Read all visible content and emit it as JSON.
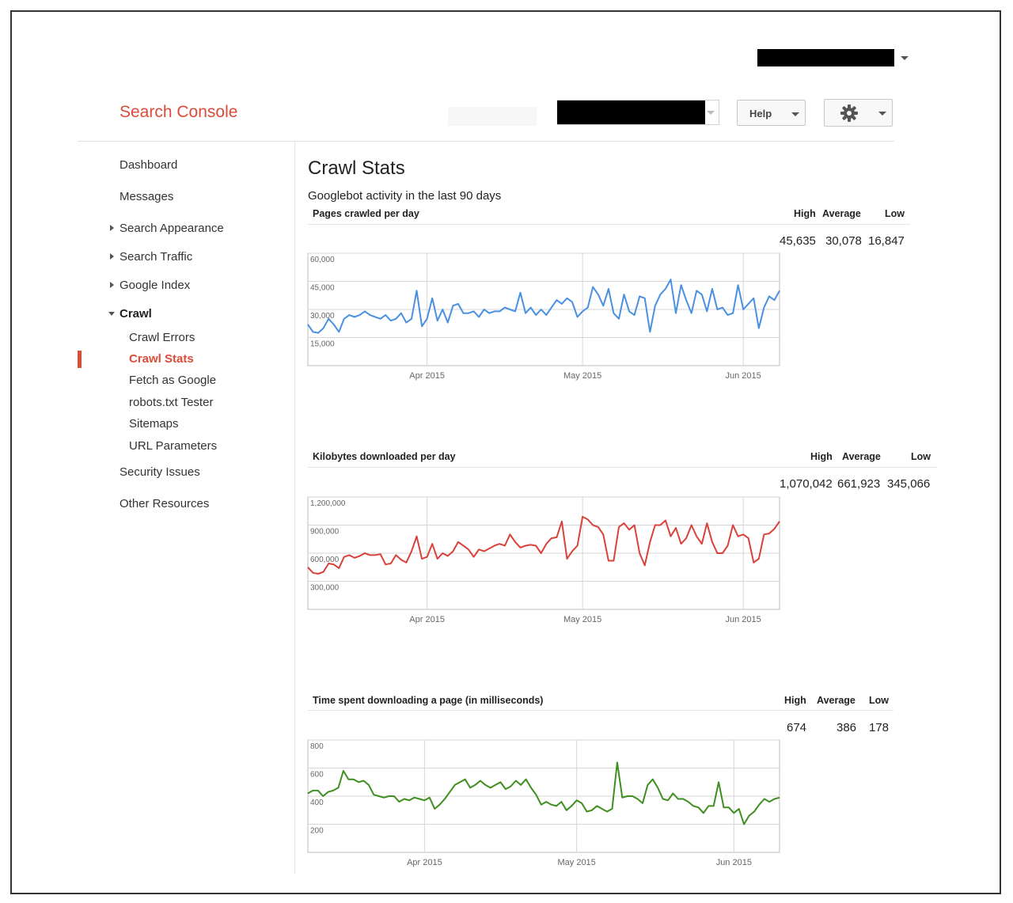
{
  "header": {
    "brand": "Search Console",
    "help_label": "Help",
    "settings_icon": "gear-icon"
  },
  "sidebar": {
    "items": [
      {
        "label": "Dashboard"
      },
      {
        "label": "Messages"
      },
      {
        "label": "Search Appearance"
      },
      {
        "label": "Search Traffic"
      },
      {
        "label": "Google Index"
      },
      {
        "label": "Crawl"
      }
    ],
    "crawl_children": [
      {
        "label": "Crawl Errors"
      },
      {
        "label": "Crawl Stats"
      },
      {
        "label": "Fetch as Google"
      },
      {
        "label": "robots.txt Tester"
      },
      {
        "label": "Sitemaps"
      },
      {
        "label": "URL Parameters"
      }
    ],
    "bottom_items": [
      {
        "label": "Security Issues"
      },
      {
        "label": "Other Resources"
      }
    ]
  },
  "main": {
    "title": "Crawl Stats",
    "subtitle": "Googlebot activity in the last 90 days"
  },
  "colors": {
    "accent": "#dd4b39",
    "pages_line": "#4a90e2",
    "kb_line": "#d9413a",
    "time_line": "#3e8e20"
  },
  "chart_data": [
    {
      "type": "line",
      "title": "Pages crawled per day",
      "stats": {
        "high_label": "High",
        "average_label": "Average",
        "low_label": "Low",
        "high": "45,635",
        "average": "30,078",
        "low": "16,847"
      },
      "ylim": [
        0,
        60000
      ],
      "yticks": [
        60000,
        45000,
        30000,
        15000
      ],
      "ytick_labels": [
        "60,000",
        "45,000",
        "30,000",
        "15,000"
      ],
      "xtick_labels": [
        "Apr 2015",
        "May 2015",
        "Jun 2015"
      ],
      "xtick_index": [
        23,
        53,
        84
      ],
      "grid": true,
      "series": [
        {
          "color": "#4a90e2",
          "values": [
            22000,
            18000,
            17500,
            20000,
            25000,
            22000,
            18000,
            25000,
            27000,
            26000,
            27000,
            29000,
            27000,
            26000,
            25000,
            27000,
            24000,
            25000,
            28000,
            23000,
            25000,
            40000,
            21000,
            25000,
            36000,
            24000,
            30000,
            23000,
            32000,
            33000,
            28000,
            28000,
            29000,
            26000,
            30000,
            28000,
            29000,
            29000,
            31000,
            30000,
            29000,
            39000,
            28000,
            31000,
            27000,
            30000,
            27000,
            31000,
            35000,
            33000,
            36000,
            34000,
            26000,
            29000,
            31000,
            42000,
            38000,
            32000,
            41000,
            28000,
            25000,
            38000,
            29000,
            27000,
            37000,
            36000,
            18000,
            32000,
            38000,
            41000,
            46000,
            28000,
            43000,
            35000,
            28000,
            40000,
            38000,
            29000,
            41000,
            30000,
            31000,
            27000,
            28000,
            43000,
            30000,
            33000,
            36000,
            20000,
            31000,
            37000,
            35000,
            40000
          ]
        }
      ]
    },
    {
      "type": "line",
      "title": "Kilobytes downloaded per day",
      "stats": {
        "high_label": "High",
        "average_label": "Average",
        "low_label": "Low",
        "high": "1,070,042",
        "average": "661,923",
        "low": "345,066"
      },
      "ylim": [
        0,
        1200000
      ],
      "yticks": [
        1200000,
        900000,
        600000,
        300000
      ],
      "ytick_labels": [
        "1,200,000",
        "900,000",
        "600,000",
        "300,000"
      ],
      "xtick_labels": [
        "Apr 2015",
        "May 2015",
        "Jun 2015"
      ],
      "xtick_index": [
        23,
        53,
        84
      ],
      "grid": true,
      "series": [
        {
          "color": "#d9413a",
          "values": [
            450000,
            390000,
            380000,
            400000,
            490000,
            480000,
            440000,
            560000,
            580000,
            550000,
            570000,
            600000,
            580000,
            580000,
            590000,
            480000,
            490000,
            580000,
            530000,
            500000,
            620000,
            780000,
            540000,
            560000,
            700000,
            540000,
            600000,
            570000,
            620000,
            720000,
            680000,
            640000,
            560000,
            640000,
            620000,
            650000,
            680000,
            700000,
            680000,
            800000,
            720000,
            660000,
            680000,
            690000,
            680000,
            600000,
            700000,
            760000,
            770000,
            940000,
            540000,
            620000,
            680000,
            990000,
            960000,
            900000,
            880000,
            800000,
            520000,
            520000,
            880000,
            920000,
            850000,
            900000,
            600000,
            470000,
            720000,
            900000,
            900000,
            950000,
            780000,
            870000,
            700000,
            760000,
            900000,
            780000,
            700000,
            920000,
            720000,
            600000,
            600000,
            680000,
            900000,
            780000,
            800000,
            760000,
            500000,
            540000,
            800000,
            810000,
            860000,
            940000
          ]
        }
      ]
    },
    {
      "type": "line",
      "title": "Time spent downloading a page (in milliseconds)",
      "stats": {
        "high_label": "High",
        "average_label": "Average",
        "low_label": "Low",
        "high": "674",
        "average": "386",
        "low": "178"
      },
      "ylim": [
        0,
        800
      ],
      "yticks": [
        800,
        600,
        400,
        200
      ],
      "ytick_labels": [
        "800",
        "600",
        "400",
        "200"
      ],
      "xtick_labels": [
        "Apr 2015",
        "May 2015",
        "Jun 2015"
      ],
      "xtick_index": [
        23,
        53,
        84
      ],
      "grid": true,
      "series": [
        {
          "color": "#3e8e20",
          "values": [
            420,
            440,
            440,
            400,
            430,
            440,
            460,
            580,
            520,
            520,
            500,
            510,
            480,
            410,
            400,
            390,
            400,
            400,
            360,
            380,
            370,
            390,
            380,
            370,
            390,
            310,
            340,
            380,
            430,
            480,
            500,
            520,
            460,
            480,
            510,
            480,
            460,
            480,
            500,
            450,
            470,
            510,
            480,
            520,
            460,
            410,
            340,
            360,
            340,
            330,
            360,
            300,
            330,
            370,
            350,
            290,
            300,
            330,
            310,
            290,
            310,
            640,
            390,
            400,
            400,
            380,
            350,
            480,
            520,
            460,
            380,
            370,
            420,
            380,
            380,
            360,
            330,
            320,
            280,
            330,
            330,
            500,
            320,
            320,
            280,
            310,
            200,
            260,
            290,
            340,
            380,
            360,
            380,
            390
          ]
        }
      ]
    }
  ]
}
